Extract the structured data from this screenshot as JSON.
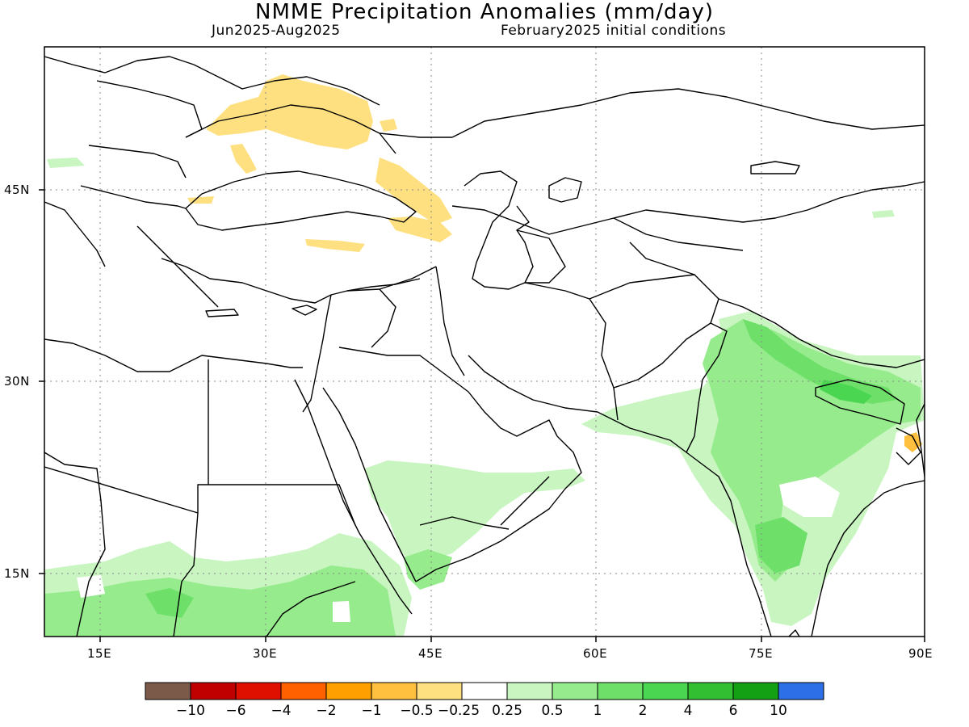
{
  "header": {
    "title": "NMME Precipitation Anomalies (mm/day)",
    "period": "Jun2025-Aug2025",
    "initial_conditions": "February2025 initial conditions"
  },
  "axes": {
    "lat_labels": [
      "45N",
      "30N",
      "15N"
    ],
    "lon_labels": [
      "15E",
      "30E",
      "45E",
      "60E",
      "75E",
      "90E"
    ]
  },
  "colorbar": {
    "colors": [
      "#7b5a4a",
      "#c00000",
      "#e01000",
      "#ff6000",
      "#ffa000",
      "#ffc040",
      "#ffe080",
      "#ffffff",
      "#c8f5c0",
      "#96eb8c",
      "#6ee06a",
      "#4ad650",
      "#32c032",
      "#14a014",
      "#2d6fe6"
    ],
    "labels": [
      "−10",
      "−6",
      "−4",
      "−2",
      "−1",
      "−0.5",
      "−0.25",
      "0.25",
      "0.5",
      "1",
      "2",
      "4",
      "6",
      "10"
    ]
  }
}
